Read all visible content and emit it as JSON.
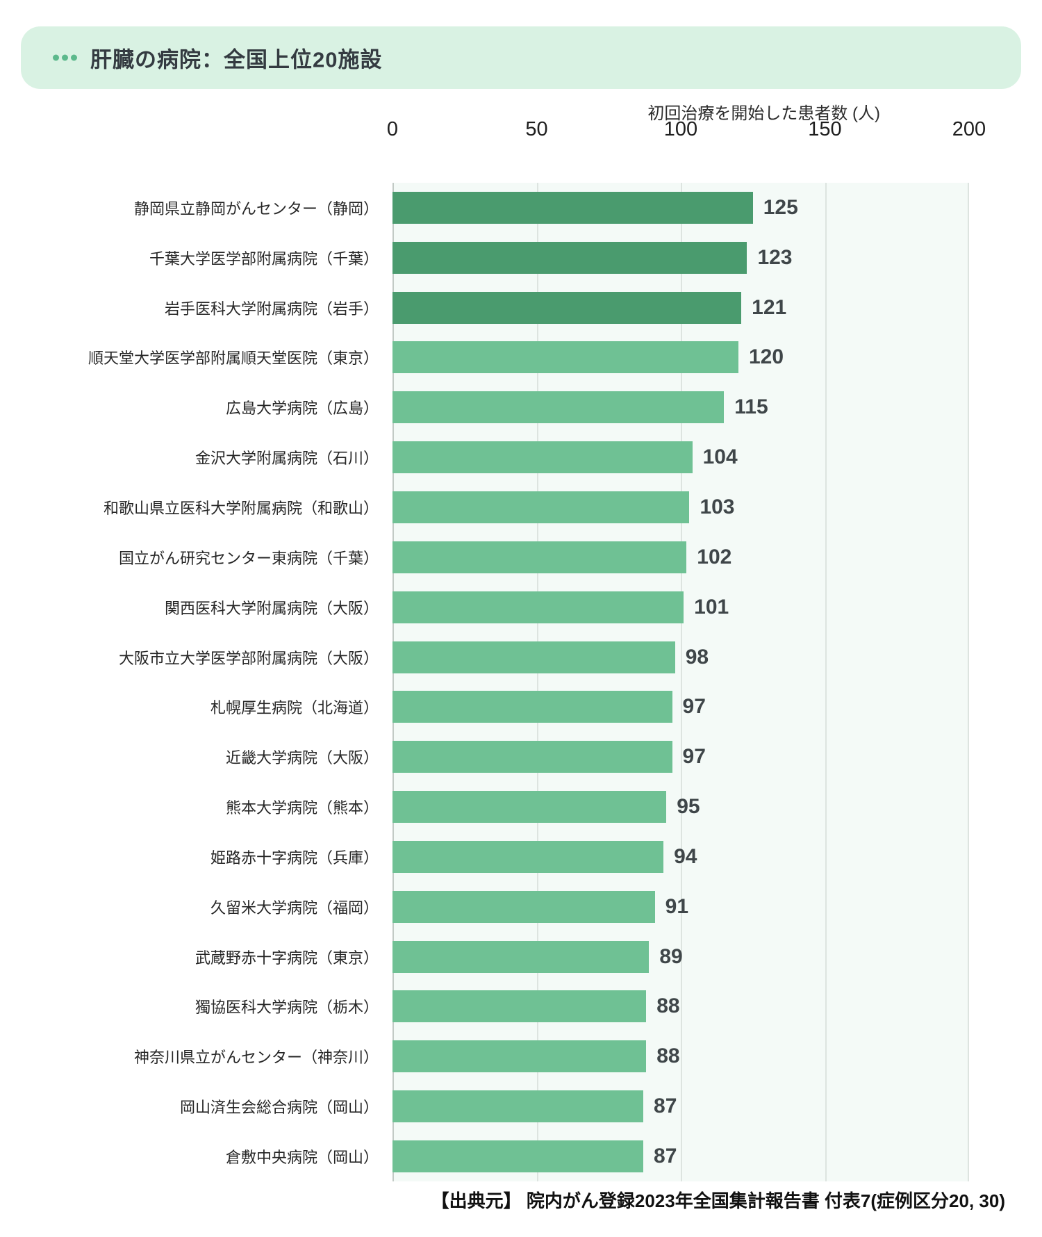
{
  "header": {
    "title": "肝臓の病院：全国上位20施設",
    "bar_bg_color": "#d9f2e3",
    "dots_icon_color": "#5cb98c"
  },
  "chart_data": {
    "type": "bar",
    "orientation": "horizontal",
    "axis_title": "初回治療を開始した患者数 (人)",
    "xlim": [
      0,
      200
    ],
    "x_ticks": [
      0,
      50,
      100,
      150,
      200
    ],
    "grid": true,
    "categories": [
      "静岡県立静岡がんセンター（静岡）",
      "千葉大学医学部附属病院（千葉）",
      "岩手医科大学附属病院（岩手）",
      "順天堂大学医学部附属順天堂医院（東京）",
      "広島大学病院（広島）",
      "金沢大学附属病院（石川）",
      "和歌山県立医科大学附属病院（和歌山）",
      "国立がん研究センター東病院（千葉）",
      "関西医科大学附属病院（大阪）",
      "大阪市立大学医学部附属病院（大阪）",
      "札幌厚生病院（北海道）",
      "近畿大学病院（大阪）",
      "熊本大学病院（熊本）",
      "姫路赤十字病院（兵庫）",
      "久留米大学病院（福岡）",
      "武蔵野赤十字病院（東京）",
      "獨協医科大学病院（栃木）",
      "神奈川県立がんセンター（神奈川）",
      "岡山済生会総合病院（岡山）",
      "倉敷中央病院（岡山）"
    ],
    "values": [
      125,
      123,
      121,
      120,
      115,
      104,
      103,
      102,
      101,
      98,
      97,
      97,
      95,
      94,
      91,
      89,
      88,
      88,
      87,
      87
    ],
    "highlight_top_n": 3,
    "colors": {
      "top3_bar": "#4a9b6e",
      "default_bar": "#6fc194",
      "plot_bg": "#f4faf7",
      "gridline": "#dde4e0",
      "zeroline": "#c2cac5"
    }
  },
  "source": "【出典元】 院内がん登録2023年全国集計報告書 付表7(症例区分20, 30)"
}
